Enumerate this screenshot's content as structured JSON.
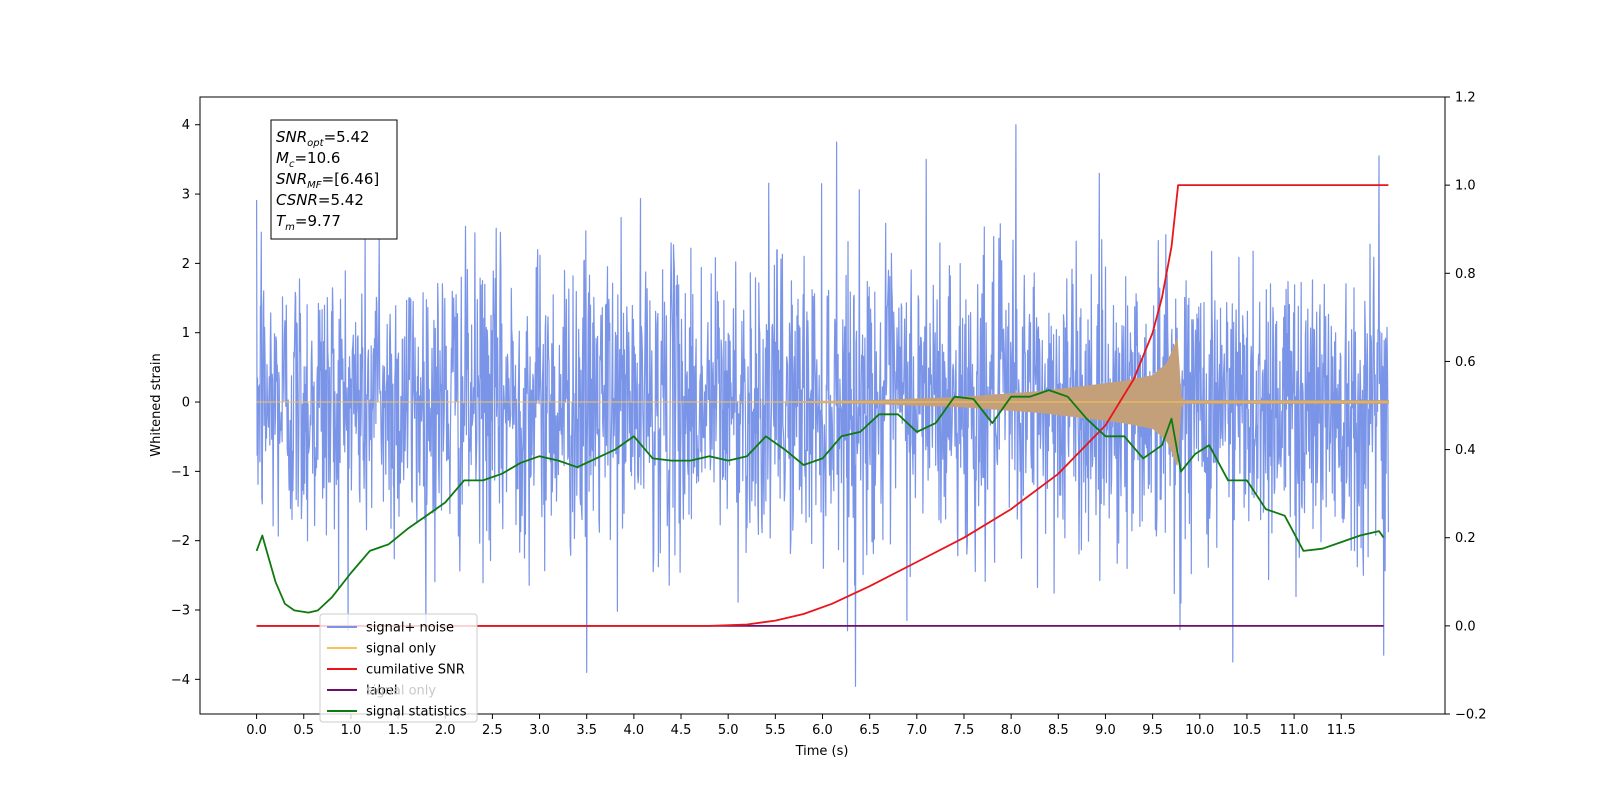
{
  "chart_data": {
    "type": "line",
    "xlabel": "Time (s)",
    "ylabel": "Whitened strain",
    "ylabel_right": "",
    "xlim": [
      -0.6,
      12.6
    ],
    "ylim": [
      -4.5,
      4.4
    ],
    "ylim_right": [
      -0.2,
      1.2
    ],
    "xticks": [
      0.0,
      0.5,
      1.0,
      1.5,
      2.0,
      2.5,
      3.0,
      3.5,
      4.0,
      4.5,
      5.0,
      5.5,
      6.0,
      6.5,
      7.0,
      7.5,
      8.0,
      8.5,
      9.0,
      9.5,
      10.0,
      10.5,
      11.0,
      11.5
    ],
    "xtick_labels": [
      "0.0",
      "0.5",
      "1.0",
      "1.5",
      "2.0",
      "2.5",
      "3.0",
      "3.5",
      "4.0",
      "4.5",
      "5.0",
      "5.5",
      "6.0",
      "6.5",
      "7.0",
      "7.5",
      "8.0",
      "8.5",
      "9.0",
      "9.5",
      "10.0",
      "10.5",
      "11.0",
      "11.5"
    ],
    "yticks": [
      -4,
      -3,
      -2,
      -1,
      0,
      1,
      2,
      3,
      4
    ],
    "ytick_labels": [
      "−4",
      "−3",
      "−2",
      "−1",
      "0",
      "1",
      "2",
      "3",
      "4"
    ],
    "yticks_right": [
      -0.2,
      0.0,
      0.2,
      0.4,
      0.6,
      0.8,
      1.0,
      1.2
    ],
    "ytick_labels_right": [
      "−0.2",
      "0.0",
      "0.2",
      "0.4",
      "0.6",
      "0.8",
      "1.0",
      "1.2"
    ],
    "grid": false,
    "legend_position": "lower-left",
    "annotation": [
      {
        "base": "SNR",
        "sub": "opt",
        "value": "=5.42"
      },
      {
        "base": "M",
        "sub": "c",
        "value": "=10.6"
      },
      {
        "base": "SNR",
        "sub": "MF",
        "value": "=[6.46]"
      },
      {
        "base": "CSNR",
        "sub": "",
        "value": "=5.42"
      },
      {
        "base": "T",
        "sub": "m",
        "value": "=9.77"
      }
    ],
    "merger_time": 9.77,
    "series": [
      {
        "name": "signal+ noise",
        "axis": "left",
        "color": "#7a94e8",
        "x_range": [
          0.0,
          12.0
        ],
        "std": 1.05,
        "peaks": [
          [
            0.05,
            2.45
          ],
          [
            1.3,
            2.4
          ],
          [
            3.5,
            -3.9
          ],
          [
            6.15,
            3.75
          ],
          [
            6.35,
            -4.1
          ],
          [
            7.1,
            3.5
          ],
          [
            8.05,
            4.0
          ],
          [
            10.35,
            -3.75
          ],
          [
            11.9,
            3.55
          ],
          [
            11.95,
            -3.65
          ]
        ]
      },
      {
        "name": "signal only",
        "axis": "left",
        "color": "#f5c45a",
        "x_range": [
          0.0,
          12.0
        ],
        "envelope": [
          [
            0.0,
            0.0
          ],
          [
            5.5,
            0.0
          ],
          [
            6.5,
            0.02
          ],
          [
            7.5,
            0.07
          ],
          [
            8.3,
            0.15
          ],
          [
            8.8,
            0.23
          ],
          [
            9.2,
            0.3
          ],
          [
            9.5,
            0.38
          ],
          [
            9.65,
            0.55
          ],
          [
            9.73,
            0.8
          ],
          [
            9.77,
            0.95
          ],
          [
            9.79,
            0.1
          ],
          [
            9.83,
            0.02
          ],
          [
            12.0,
            0.02
          ]
        ]
      },
      {
        "name": "cumilative SNR",
        "axis": "right",
        "color": "#e8151a",
        "x": [
          0.0,
          4.8,
          5.2,
          5.5,
          5.8,
          6.1,
          6.5,
          7.0,
          7.5,
          8.0,
          8.5,
          9.0,
          9.3,
          9.5,
          9.6,
          9.7,
          9.77,
          12.0
        ],
        "values": [
          0.0,
          0.0,
          0.003,
          0.012,
          0.027,
          0.05,
          0.09,
          0.145,
          0.2,
          0.265,
          0.345,
          0.455,
          0.56,
          0.665,
          0.745,
          0.86,
          1.0,
          1.0
        ]
      },
      {
        "name": "label",
        "axis": "right",
        "color": "#6b0f6b",
        "x": [
          0.0,
          11.95
        ],
        "values": [
          0.0,
          0.0
        ]
      },
      {
        "name": "signal only",
        "axis": "right",
        "color": "#d4d4d4",
        "x": [],
        "values": []
      },
      {
        "name": "signal statistics",
        "axis": "right",
        "color": "#0e7a0e",
        "x": [
          0.0,
          0.06,
          0.12,
          0.2,
          0.3,
          0.4,
          0.55,
          0.65,
          0.8,
          1.0,
          1.2,
          1.4,
          1.6,
          1.8,
          2.0,
          2.2,
          2.4,
          2.6,
          2.8,
          3.0,
          3.2,
          3.4,
          3.6,
          3.8,
          4.0,
          4.2,
          4.4,
          4.6,
          4.8,
          5.0,
          5.2,
          5.4,
          5.6,
          5.8,
          6.0,
          6.2,
          6.4,
          6.6,
          6.8,
          7.0,
          7.2,
          7.4,
          7.6,
          7.8,
          8.0,
          8.2,
          8.4,
          8.6,
          8.8,
          9.0,
          9.2,
          9.4,
          9.6,
          9.7,
          9.8,
          9.95,
          10.1,
          10.3,
          10.5,
          10.7,
          10.9,
          11.1,
          11.3,
          11.5,
          11.7,
          11.9,
          11.95
        ],
        "values": [
          0.17,
          0.205,
          0.16,
          0.1,
          0.05,
          0.035,
          0.03,
          0.035,
          0.065,
          0.12,
          0.17,
          0.185,
          0.22,
          0.25,
          0.28,
          0.33,
          0.33,
          0.345,
          0.37,
          0.385,
          0.375,
          0.36,
          0.38,
          0.4,
          0.43,
          0.38,
          0.375,
          0.375,
          0.385,
          0.375,
          0.385,
          0.43,
          0.4,
          0.365,
          0.38,
          0.43,
          0.44,
          0.48,
          0.48,
          0.44,
          0.46,
          0.52,
          0.515,
          0.46,
          0.52,
          0.52,
          0.535,
          0.52,
          0.47,
          0.43,
          0.43,
          0.38,
          0.41,
          0.47,
          0.35,
          0.39,
          0.41,
          0.33,
          0.33,
          0.265,
          0.25,
          0.17,
          0.175,
          0.19,
          0.205,
          0.215,
          0.2
        ]
      }
    ]
  }
}
